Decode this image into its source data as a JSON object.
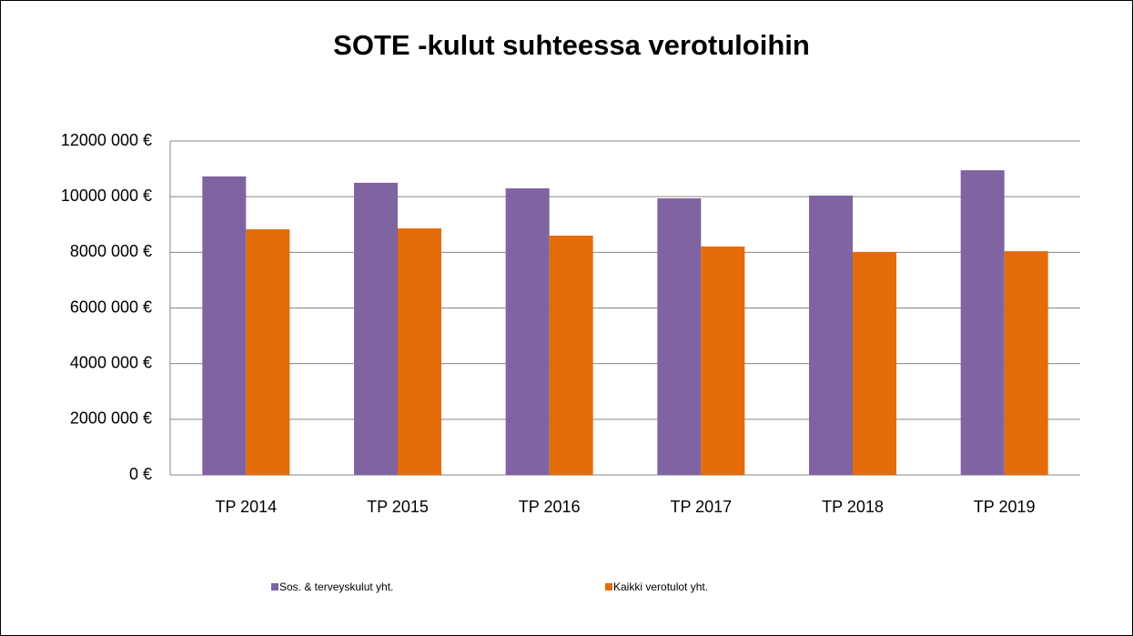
{
  "chart_data": {
    "type": "bar",
    "title": "SOTE -kulut suhteessa verotuloihin",
    "categories": [
      "TP 2014",
      "TP 2015",
      "TP 2016",
      "TP 2017",
      "TP 2018",
      "TP 2019"
    ],
    "series": [
      {
        "name": "Sos. & terveyskulut yht.",
        "color": "#8064a2",
        "values": [
          10730000,
          10500000,
          10300000,
          9940000,
          10040000,
          10950000
        ]
      },
      {
        "name": "Kaikki verotulot yht.",
        "color": "#e46c0a",
        "values": [
          8830000,
          8860000,
          8600000,
          8210000,
          8010000,
          8040000
        ]
      }
    ],
    "ylim": [
      0,
      12000000
    ],
    "yticks": [
      {
        "value": 0,
        "label": "0 €"
      },
      {
        "value": 2000000,
        "label": "2000 000 €"
      },
      {
        "value": 4000000,
        "label": "4000 000 €"
      },
      {
        "value": 6000000,
        "label": "6000 000 €"
      },
      {
        "value": 8000000,
        "label": "8000 000 €"
      },
      {
        "value": 10000000,
        "label": "10000 000 €"
      },
      {
        "value": 12000000,
        "label": "12000 000 €"
      }
    ],
    "grid": true,
    "legend": "bottom"
  }
}
